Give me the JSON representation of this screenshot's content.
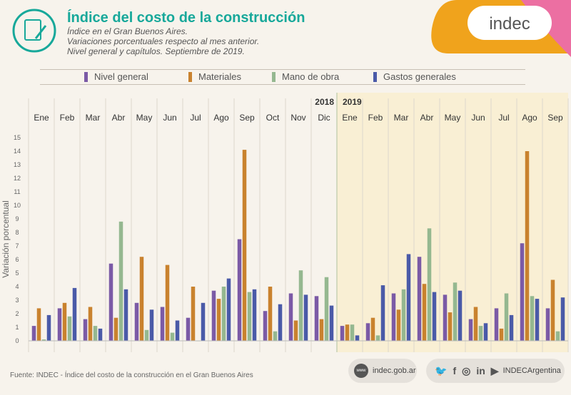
{
  "header": {
    "title": "Índice del costo de la construcción",
    "subtitle_1": "Índice en el Gran Buenos Aires.",
    "subtitle_2": "Variaciones porcentuales respecto al mes anterior.",
    "subtitle_3": "Nivel general y capítulos. Septiembre de 2019.",
    "brand": "indec"
  },
  "footer": {
    "source": "Fuente: INDEC - Índice del costo de la construcción en el Gran Buenos Aires",
    "website": "indec.gob.ar",
    "www_label": "www",
    "social_handle": "INDECArgentina"
  },
  "colors": {
    "teal": "#17a89a",
    "background": "#f7f3ec",
    "highlight_2019": "#f9efd4",
    "orange": "#f0a31c",
    "pink": "#ec6fa2"
  },
  "chart_data": {
    "type": "bar",
    "ylabel": "Variación porcentual",
    "ylim": [
      0,
      15
    ],
    "yticks": [
      0,
      1,
      2,
      3,
      4,
      5,
      6,
      7,
      8,
      9,
      10,
      11,
      12,
      13,
      14,
      15
    ],
    "years": [
      {
        "label": "2018",
        "months": 12
      },
      {
        "label": "2019",
        "months": 9
      }
    ],
    "categories": [
      "Ene",
      "Feb",
      "Mar",
      "Abr",
      "May",
      "Jun",
      "Jul",
      "Ago",
      "Sep",
      "Oct",
      "Nov",
      "Dic",
      "Ene",
      "Feb",
      "Mar",
      "Abr",
      "May",
      "Jun",
      "Jul",
      "Ago",
      "Sep"
    ],
    "legend_position": "top",
    "series": [
      {
        "name": "Nivel general",
        "color": "#7b5aa6",
        "values": [
          1.1,
          2.4,
          1.6,
          5.7,
          2.8,
          2.5,
          1.7,
          3.7,
          7.5,
          2.2,
          3.5,
          3.3,
          1.1,
          1.3,
          3.5,
          6.2,
          3.4,
          1.6,
          2.4,
          7.2,
          2.4
        ]
      },
      {
        "name": "Materiales",
        "color": "#c9822e",
        "values": [
          2.4,
          2.8,
          2.5,
          1.7,
          6.2,
          5.6,
          4.0,
          3.1,
          14.1,
          4.0,
          1.5,
          1.6,
          1.2,
          1.7,
          2.3,
          4.2,
          2.1,
          2.5,
          0.9,
          14.0,
          4.5
        ]
      },
      {
        "name": "Mano de obra",
        "color": "#95b890",
        "values": [
          0.1,
          1.8,
          1.1,
          8.8,
          0.8,
          0.6,
          0.0,
          4.0,
          3.6,
          0.7,
          5.2,
          4.7,
          1.2,
          0.4,
          3.8,
          8.3,
          4.3,
          1.1,
          3.5,
          3.3,
          0.7
        ]
      },
      {
        "name": "Gastos generales",
        "color": "#4a5aa8",
        "values": [
          1.9,
          3.9,
          0.9,
          3.8,
          2.3,
          1.5,
          2.8,
          4.6,
          3.8,
          2.7,
          3.4,
          2.6,
          0.4,
          4.1,
          6.4,
          3.6,
          3.7,
          1.3,
          1.9,
          3.1,
          3.2
        ]
      }
    ]
  }
}
